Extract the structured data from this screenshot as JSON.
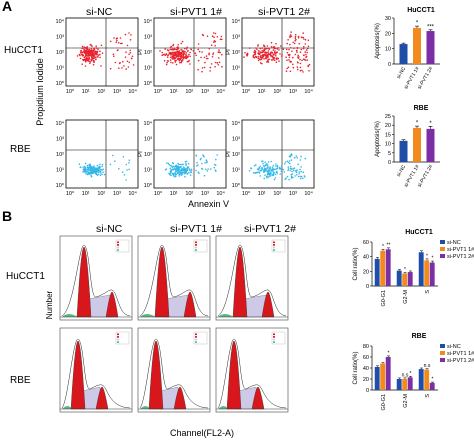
{
  "colors": {
    "flow_hucct1": "#e8222e",
    "flow_rbe": "#35b7e8",
    "bar_nc": "#1f4ea8",
    "bar_pvt1_1": "#f28a1e",
    "bar_pvt1_2": "#7b2ea5",
    "g1_peak": "#d8171d",
    "g2_peak": "#d8171d",
    "s_phase": "#cfc9e8",
    "debris": "#59b881"
  },
  "panel_a": {
    "letter": "A",
    "columns": [
      "si-NC",
      "si-PVT1 1#",
      "si-PVT1 2#"
    ],
    "rows": [
      "HuCCT1",
      "RBE"
    ],
    "y_axis_label": "Propidium Iodide",
    "pi_label": "PI",
    "x_axis_label": "Annexin V",
    "y_ticks": [
      "10⁰",
      "10¹",
      "10²",
      "10³",
      "10⁴"
    ],
    "x_ticks": [
      "10⁰",
      "10¹",
      "10²",
      "10³",
      "10⁴"
    ]
  },
  "panel_b": {
    "letter": "B",
    "columns": [
      "si-NC",
      "si-PVT1 1#",
      "si-PVT1 2#"
    ],
    "rows": [
      "HuCCT1",
      "RBE"
    ],
    "y_axis_label": "Number",
    "x_axis_label": "Channel(FL2-A)"
  },
  "chart_data": [
    {
      "type": "bar",
      "title": "HuCCT1",
      "ylabel": "Apoptosis(%)",
      "categories": [
        "si-NC",
        "si-PVT1 1#",
        "si-PVT1 2#"
      ],
      "values": [
        13,
        23.5,
        21.5
      ],
      "errors": [
        0.6,
        1.2,
        0.8
      ],
      "ylim": [
        0,
        30
      ],
      "yticks": [
        "0",
        "10",
        "20",
        "30"
      ],
      "annotations": [
        "",
        "*",
        "***"
      ]
    },
    {
      "type": "bar",
      "title": "RBE",
      "ylabel": "Apoptosis(%)",
      "categories": [
        "si-NC",
        "si-PVT1 1#",
        "si-PVT1 2#"
      ],
      "values": [
        11.5,
        18.5,
        18
      ],
      "errors": [
        0.6,
        1.0,
        1.4
      ],
      "ylim": [
        0,
        25
      ],
      "yticks": [
        "0",
        "5",
        "10",
        "15",
        "20",
        "25"
      ],
      "annotations": [
        "",
        "*",
        "*"
      ]
    },
    {
      "type": "bar",
      "title": "HuCCT1",
      "ylabel": "Cell ratio(%)",
      "categories": [
        "G0-G1",
        "G2-M",
        "S"
      ],
      "series": [
        {
          "name": "si-NC",
          "values": [
            37,
            21,
            46
          ],
          "errors": [
            2,
            1.5,
            2
          ]
        },
        {
          "name": "si-PVT1 1#",
          "values": [
            48,
            17,
            35
          ],
          "errors": [
            2,
            1.5,
            2
          ]
        },
        {
          "name": "si-PVT1 2#",
          "values": [
            50,
            19,
            32
          ],
          "errors": [
            2,
            1.5,
            2
          ]
        }
      ],
      "ylim": [
        0,
        60
      ],
      "yticks": [
        "0",
        "20",
        "40",
        "60"
      ],
      "legend_position": "top-right",
      "annotations": [
        {
          "category": 0,
          "labels": [
            "",
            "*",
            "**"
          ]
        },
        {
          "category": 1,
          "labels": [
            "",
            "*",
            ""
          ]
        },
        {
          "category": 2,
          "labels": [
            "",
            "*",
            "*"
          ]
        }
      ]
    },
    {
      "type": "bar",
      "title": "RBE",
      "ylabel": "Cell ratio(%)",
      "categories": [
        "G0-G1",
        "G2-M",
        "S"
      ],
      "series": [
        {
          "name": "si-NC",
          "values": [
            42,
            20,
            38
          ],
          "errors": [
            2,
            2,
            2
          ]
        },
        {
          "name": "si-PVT1 1#",
          "values": [
            48,
            20,
            37
          ],
          "errors": [
            2,
            2,
            2
          ]
        },
        {
          "name": "si-PVT1 2#",
          "values": [
            60,
            23,
            13
          ],
          "errors": [
            2,
            2,
            1.5
          ]
        }
      ],
      "ylim": [
        0,
        80
      ],
      "yticks": [
        "0",
        "20",
        "40",
        "60",
        "80"
      ],
      "legend_position": "top-right",
      "annotations": [
        {
          "category": 0,
          "labels": [
            "",
            "",
            "*"
          ]
        },
        {
          "category": 1,
          "labels": [
            "",
            "n.s",
            "*"
          ]
        },
        {
          "category": 2,
          "labels": [
            "",
            "n.s",
            "*"
          ]
        }
      ]
    }
  ]
}
